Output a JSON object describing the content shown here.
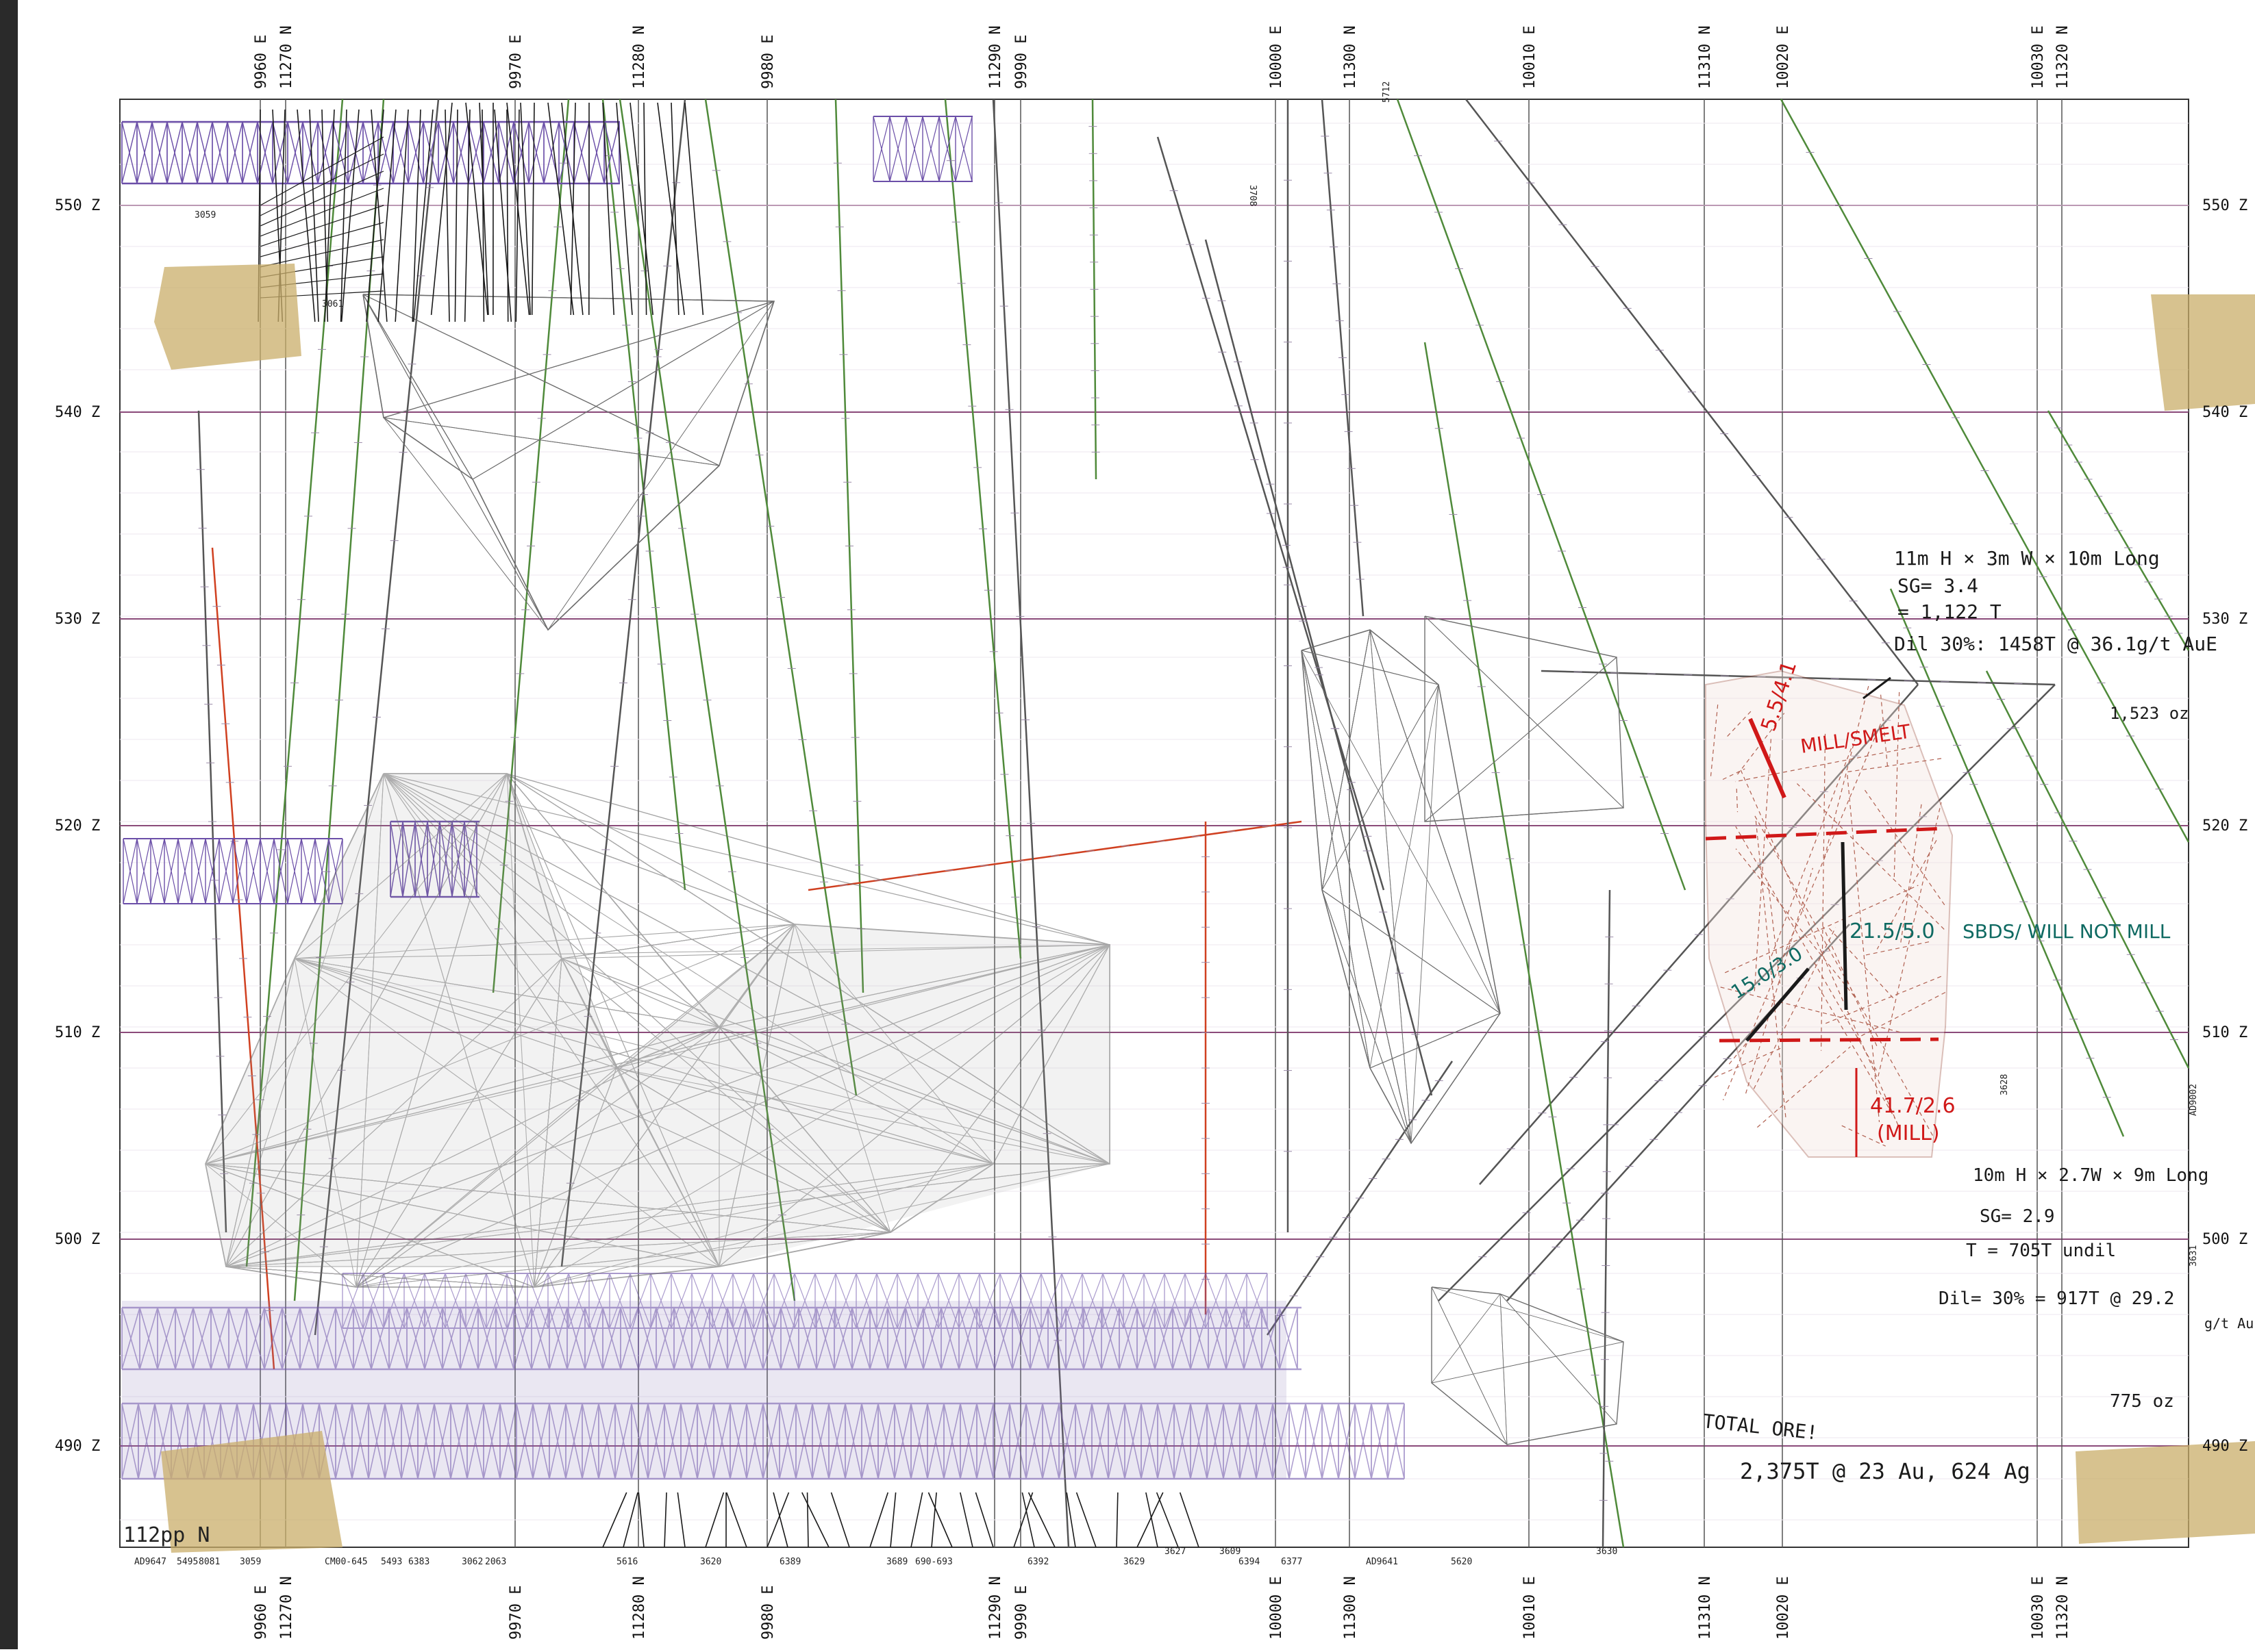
{
  "section": {
    "northing_labels": [
      "11270 N",
      "11280 N",
      "11290 N",
      "11300 N",
      "11310 N",
      "11320 N"
    ],
    "easting_labels": [
      "9960 E",
      "9970 E",
      "9980 E",
      "9990 E",
      "10000 E",
      "10010 E",
      "10020 E",
      "10030 E"
    ],
    "elevation_labels": [
      "550 Z",
      "540 Z",
      "530 Z",
      "520 Z",
      "510 Z",
      "500 Z",
      "490 Z"
    ],
    "section_label": "112pp N",
    "bottom_hole_ids": [
      "AD9647",
      "5495",
      "8081",
      "3059",
      "CM00-645",
      "5493",
      "6383",
      "3062",
      "2063",
      "5616",
      "3620",
      "6389",
      "3689",
      "690-693",
      "6392",
      "3629",
      "3627",
      "3609",
      "6394",
      "6377",
      "AD9641",
      "5620",
      "3630"
    ],
    "side_hole_ids": [
      "AD9002",
      "3631",
      "3628"
    ],
    "top_hole_ids": [
      "3059",
      "3061",
      "3708",
      "5712"
    ]
  },
  "upper_block": {
    "dims": "11m H × 3m W × 10m Long",
    "sg": "SG= 3.4",
    "tonnes": "= 1,122 T",
    "diluted": "Dil 30%: 1458T @ 36.1g/t AuE",
    "ounces": "1,523 oz"
  },
  "intercepts": {
    "mill_smelt": "5.5/4.1",
    "mill_smelt_label": "MILL/SMELT",
    "sbds": "21.5/5.0",
    "sbds_label": "SBDS/ WILL NOT MILL",
    "diag": "15.0/3.0",
    "mill": "41.7/2.6",
    "mill_label": "(MILL)"
  },
  "lower_block": {
    "dims": "10m H × 2.7W × 9m Long",
    "sg": "SG= 2.9",
    "tonnes": "T = 705T undil",
    "diluted": "Dil= 30% = 917T @ 29.2",
    "diluted_unit": "g/t AuE",
    "ounces": "775 oz"
  },
  "total": {
    "label": "TOTAL ORE!",
    "value": "2,375T @ 23 Au, 624 Ag"
  },
  "colors": {
    "grid_elev": "#8b4b7a",
    "grid_vert": "#555555",
    "wireframe_purple": "#6b4fa8",
    "wireframe_grey": "#6e6e6e",
    "drill_green": "#4f8a3a",
    "annot_red": "#d01818",
    "annot_teal": "#0f6a62",
    "annot_black": "#1a1a1a",
    "tape": "#c9ad6a"
  }
}
